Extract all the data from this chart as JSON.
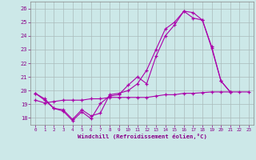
{
  "xlabel": "Windchill (Refroidissement éolien,°C)",
  "background_color": "#cce8e8",
  "grid_color": "#aacccc",
  "line_color": "#aa00aa",
  "xlim": [
    -0.5,
    23.5
  ],
  "ylim": [
    17.5,
    26.5
  ],
  "yticks": [
    18,
    19,
    20,
    21,
    22,
    23,
    24,
    25,
    26
  ],
  "xticks": [
    0,
    1,
    2,
    3,
    4,
    5,
    6,
    7,
    8,
    9,
    10,
    11,
    12,
    13,
    14,
    15,
    16,
    17,
    18,
    19,
    20,
    21,
    22,
    23
  ],
  "sx1": [
    0,
    1,
    2,
    3,
    4,
    5,
    6,
    7,
    8,
    9,
    10,
    11,
    12,
    13,
    14,
    15,
    16,
    17,
    18,
    19,
    20,
    21
  ],
  "sy1": [
    19.8,
    19.4,
    18.7,
    18.6,
    17.9,
    18.6,
    18.15,
    18.35,
    19.7,
    19.8,
    20.0,
    20.5,
    21.5,
    23.0,
    24.5,
    25.0,
    25.8,
    25.7,
    25.15,
    23.2,
    20.7,
    19.9
  ],
  "sx2": [
    0,
    1,
    2,
    3,
    4,
    5,
    6,
    7,
    8,
    9,
    10,
    11,
    12,
    13,
    14,
    15,
    16,
    17,
    18,
    19,
    20,
    21
  ],
  "sy2": [
    19.8,
    19.3,
    18.7,
    18.5,
    17.8,
    18.45,
    17.95,
    19.05,
    19.6,
    19.7,
    20.4,
    21.0,
    20.5,
    22.5,
    24.0,
    24.8,
    25.8,
    25.3,
    25.15,
    23.1,
    20.7,
    19.9
  ],
  "sx3": [
    0,
    1,
    2,
    3,
    4,
    5,
    6,
    7,
    8,
    9,
    10,
    11,
    12,
    13,
    14,
    15,
    16,
    17,
    18,
    19,
    20,
    21,
    22,
    23
  ],
  "sy3": [
    19.3,
    19.1,
    19.2,
    19.3,
    19.3,
    19.3,
    19.4,
    19.4,
    19.5,
    19.5,
    19.5,
    19.5,
    19.5,
    19.6,
    19.7,
    19.7,
    19.8,
    19.8,
    19.85,
    19.9,
    19.9,
    19.9,
    19.9,
    19.9
  ]
}
